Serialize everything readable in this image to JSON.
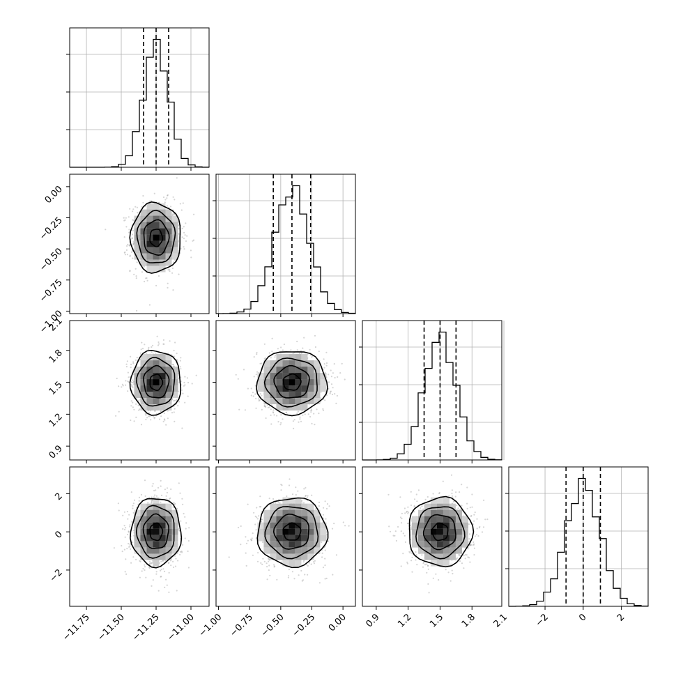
{
  "chart_data": {
    "type": "corner",
    "parameters": [
      {
        "mean": -11.25,
        "sd": 0.09,
        "range": [
          -11.87,
          -10.87
        ],
        "ticks": [
          -11.75,
          -11.5,
          -11.25,
          -11.0
        ],
        "tick_labels": [
          "−11.75",
          "−11.50",
          "−11.25",
          "−11.00"
        ],
        "quantiles": [
          -11.34,
          -11.25,
          -11.16
        ]
      },
      {
        "mean": -0.41,
        "sd": 0.14,
        "range": [
          -1.02,
          0.1
        ],
        "ticks": [
          -1.0,
          -0.75,
          -0.5,
          -0.25,
          0.0
        ],
        "tick_labels": [
          "−1.00",
          "−0.75",
          "−0.50",
          "−0.25",
          "0.00"
        ],
        "quantiles": [
          -0.56,
          -0.41,
          -0.26
        ]
      },
      {
        "mean": 1.5,
        "sd": 0.15,
        "range": [
          0.77,
          2.08
        ],
        "ticks": [
          0.9,
          1.2,
          1.5,
          1.8,
          2.1
        ],
        "tick_labels": [
          "0.9",
          "1.2",
          "1.5",
          "1.8",
          "2.1"
        ],
        "quantiles": [
          1.35,
          1.5,
          1.65
        ]
      },
      {
        "mean": 0.0,
        "sd": 0.9,
        "range": [
          -3.9,
          3.4
        ],
        "ticks": [
          -2,
          0,
          2
        ],
        "tick_labels": [
          "−2",
          "0",
          "2"
        ],
        "quantiles": [
          -0.9,
          0.0,
          0.9
        ]
      }
    ],
    "bins": 20,
    "grid": true,
    "contour_levels": [
      0.5,
      1.0,
      1.5,
      2.0
    ],
    "xlabel": "",
    "ylabel": "",
    "title": ""
  }
}
